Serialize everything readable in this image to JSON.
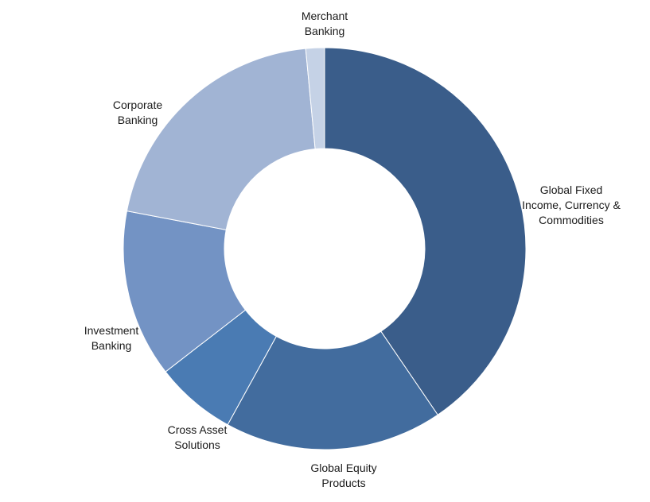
{
  "chart_data": {
    "type": "pie",
    "donut": true,
    "title": "",
    "legend": "none",
    "slices": [
      {
        "label_lines": [
          "Global Fixed",
          "Income, Currency &",
          "Commodities"
        ],
        "value": 40.5,
        "color": "#3a5d8a"
      },
      {
        "label_lines": [
          "Global Equity",
          "Products"
        ],
        "value": 17.5,
        "color": "#426c9e"
      },
      {
        "label_lines": [
          "Cross Asset",
          "Solutions"
        ],
        "value": 6.5,
        "color": "#4a7bb3"
      },
      {
        "label_lines": [
          "Investment",
          "Banking"
        ],
        "value": 13.5,
        "color": "#7393c4"
      },
      {
        "label_lines": [
          "Corporate",
          "Banking"
        ],
        "value": 20.5,
        "color": "#a1b4d4"
      },
      {
        "label_lines": [
          "Merchant",
          "Banking"
        ],
        "value": 1.5,
        "color": "#c5d2e6"
      }
    ]
  }
}
